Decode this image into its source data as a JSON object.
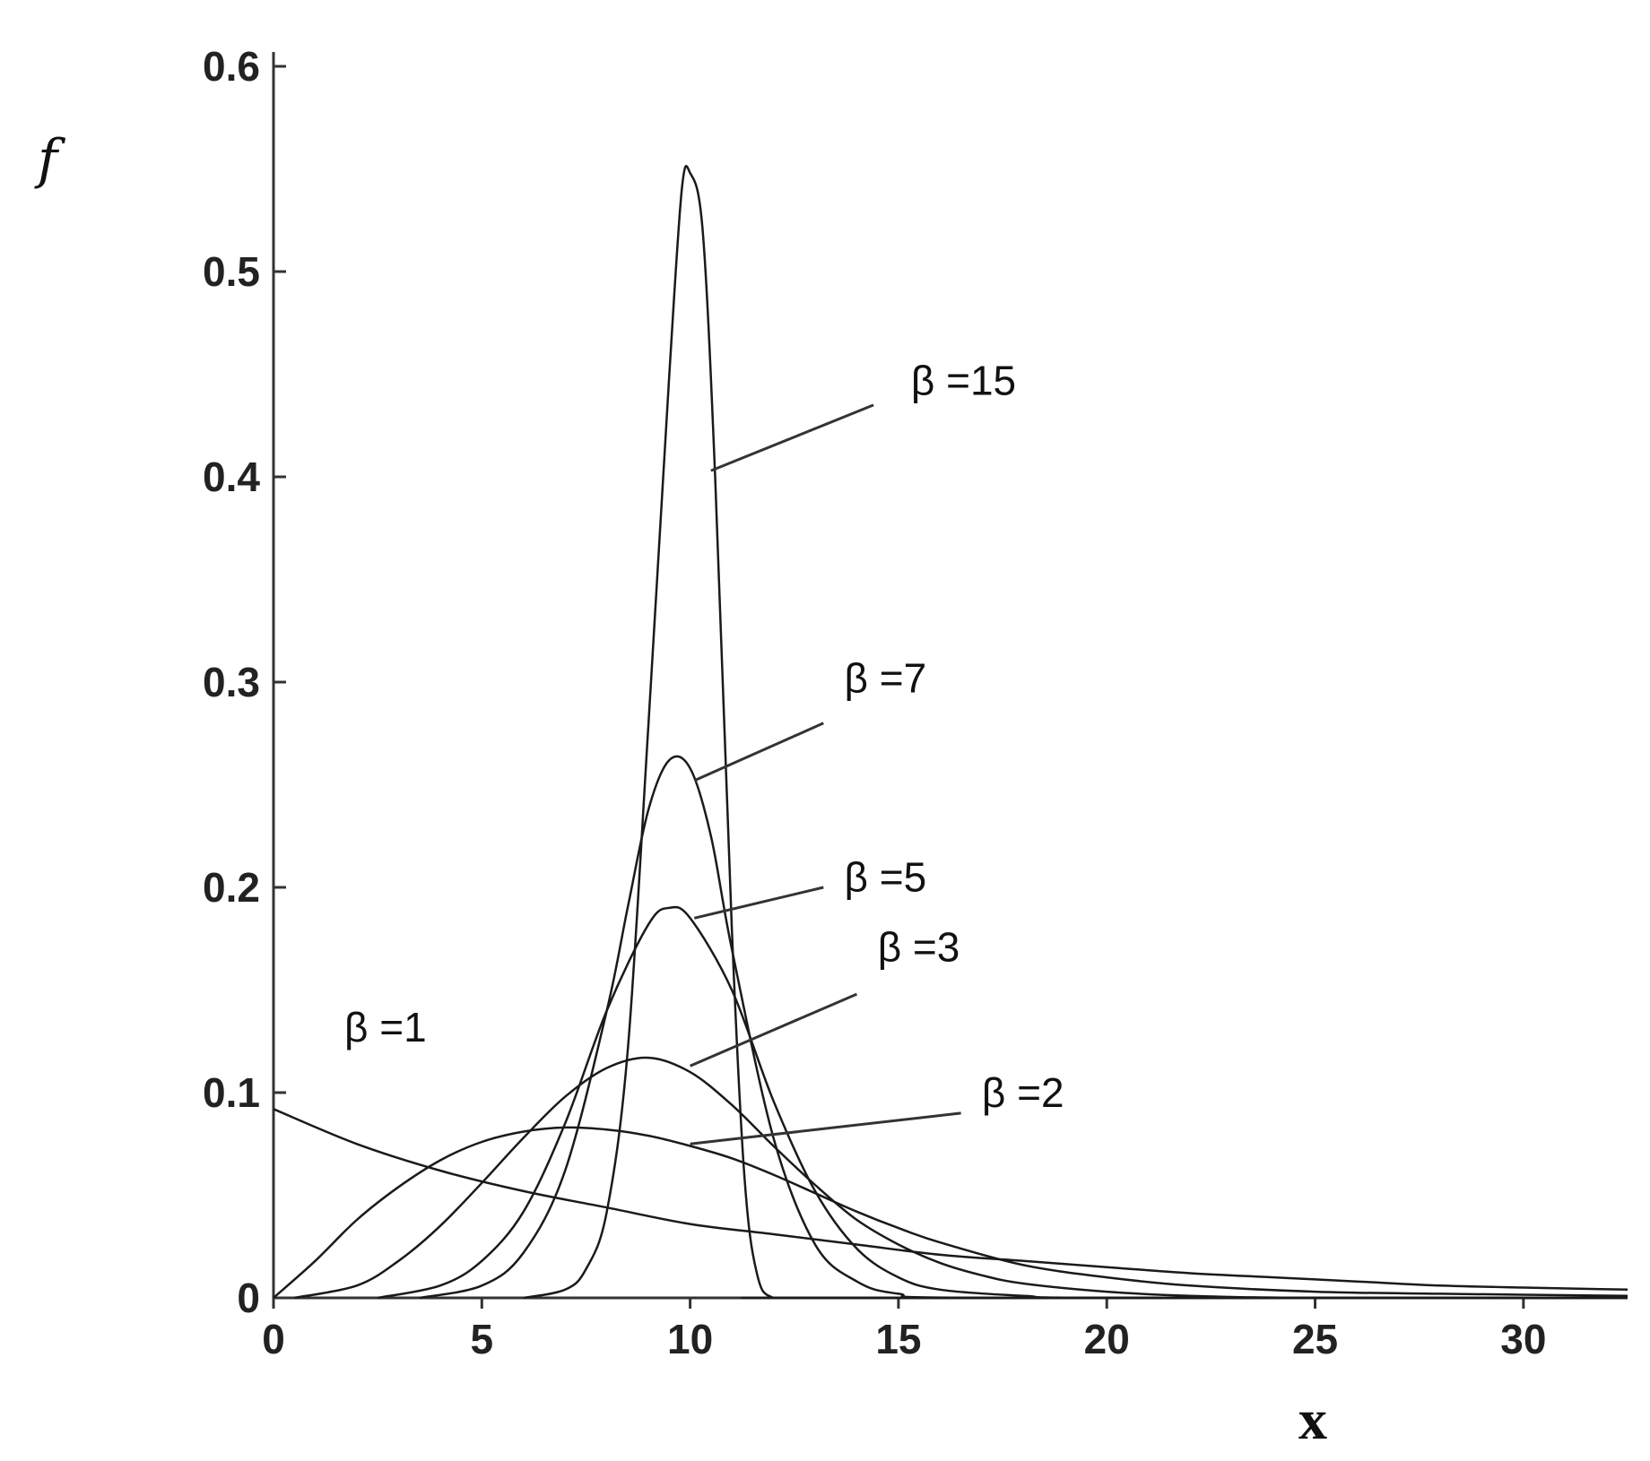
{
  "chart_data": {
    "type": "line",
    "xlabel": "x",
    "ylabel": "f",
    "xlim": [
      0,
      32.5
    ],
    "ylim": [
      0,
      0.6
    ],
    "xticks": [
      "0",
      "5",
      "10",
      "15",
      "20",
      "25",
      "30"
    ],
    "yticks": [
      "0",
      "0.1",
      "0.2",
      "0.3",
      "0.4",
      "0.5",
      "0.6"
    ],
    "series": [
      {
        "name": "β =1",
        "x": [
          0,
          2,
          4,
          6,
          8,
          10,
          12,
          14,
          16,
          18,
          20,
          22,
          24,
          26,
          28,
          30,
          32.5
        ],
        "y": [
          0.092,
          0.075,
          0.062,
          0.052,
          0.044,
          0.036,
          0.031,
          0.026,
          0.021,
          0.018,
          0.015,
          0.012,
          0.01,
          0.008,
          0.006,
          0.005,
          0.004
        ]
      },
      {
        "name": "β =2",
        "x": [
          0,
          1,
          2,
          3,
          4,
          5,
          6,
          7,
          8,
          9,
          10,
          11,
          12,
          13,
          14,
          15,
          16,
          18,
          20,
          22,
          25,
          28,
          32.5
        ],
        "y": [
          0,
          0.018,
          0.038,
          0.054,
          0.067,
          0.076,
          0.081,
          0.083,
          0.082,
          0.079,
          0.074,
          0.068,
          0.06,
          0.051,
          0.042,
          0.034,
          0.027,
          0.016,
          0.01,
          0.006,
          0.003,
          0.002,
          0.001
        ]
      },
      {
        "name": "β =3",
        "x": [
          0.5,
          2,
          3,
          4,
          5,
          6,
          7,
          8,
          9,
          10,
          11,
          12,
          13,
          14,
          15,
          16,
          17,
          18,
          20,
          22,
          25,
          32.5
        ],
        "y": [
          0,
          0.006,
          0.018,
          0.035,
          0.056,
          0.078,
          0.098,
          0.112,
          0.117,
          0.11,
          0.094,
          0.074,
          0.055,
          0.038,
          0.026,
          0.017,
          0.011,
          0.007,
          0.003,
          0.001,
          0,
          0
        ]
      },
      {
        "name": "β =5",
        "x": [
          2.5,
          4,
          5,
          6,
          7,
          8,
          9,
          9.5,
          10,
          11,
          12,
          13,
          14,
          15,
          16,
          18,
          20,
          32.5
        ],
        "y": [
          0,
          0.006,
          0.018,
          0.042,
          0.085,
          0.14,
          0.182,
          0.19,
          0.185,
          0.15,
          0.096,
          0.052,
          0.024,
          0.01,
          0.004,
          0.001,
          0,
          0
        ]
      },
      {
        "name": "β =7",
        "x": [
          3.5,
          5,
          6,
          7,
          8,
          8.5,
          9,
          9.5,
          10,
          10.5,
          11,
          12,
          13,
          14,
          15,
          17,
          32.5
        ],
        "y": [
          0,
          0.006,
          0.022,
          0.062,
          0.14,
          0.19,
          0.238,
          0.262,
          0.258,
          0.225,
          0.17,
          0.078,
          0.026,
          0.008,
          0.002,
          0,
          0
        ]
      },
      {
        "name": "β =15",
        "x": [
          6,
          7,
          7.5,
          8,
          8.5,
          9,
          9.5,
          9.8,
          10,
          10.3,
          10.6,
          11,
          11.3,
          11.6,
          12,
          13,
          32.5
        ],
        "y": [
          0,
          0.004,
          0.014,
          0.042,
          0.12,
          0.28,
          0.45,
          0.54,
          0.548,
          0.52,
          0.4,
          0.18,
          0.06,
          0.012,
          0,
          0,
          0
        ]
      }
    ],
    "labels": [
      "β =15",
      "β =7",
      "β =5",
      "β =3",
      "β =2",
      "β =1"
    ],
    "grid": false,
    "legend": "none (curves labeled directly)"
  }
}
